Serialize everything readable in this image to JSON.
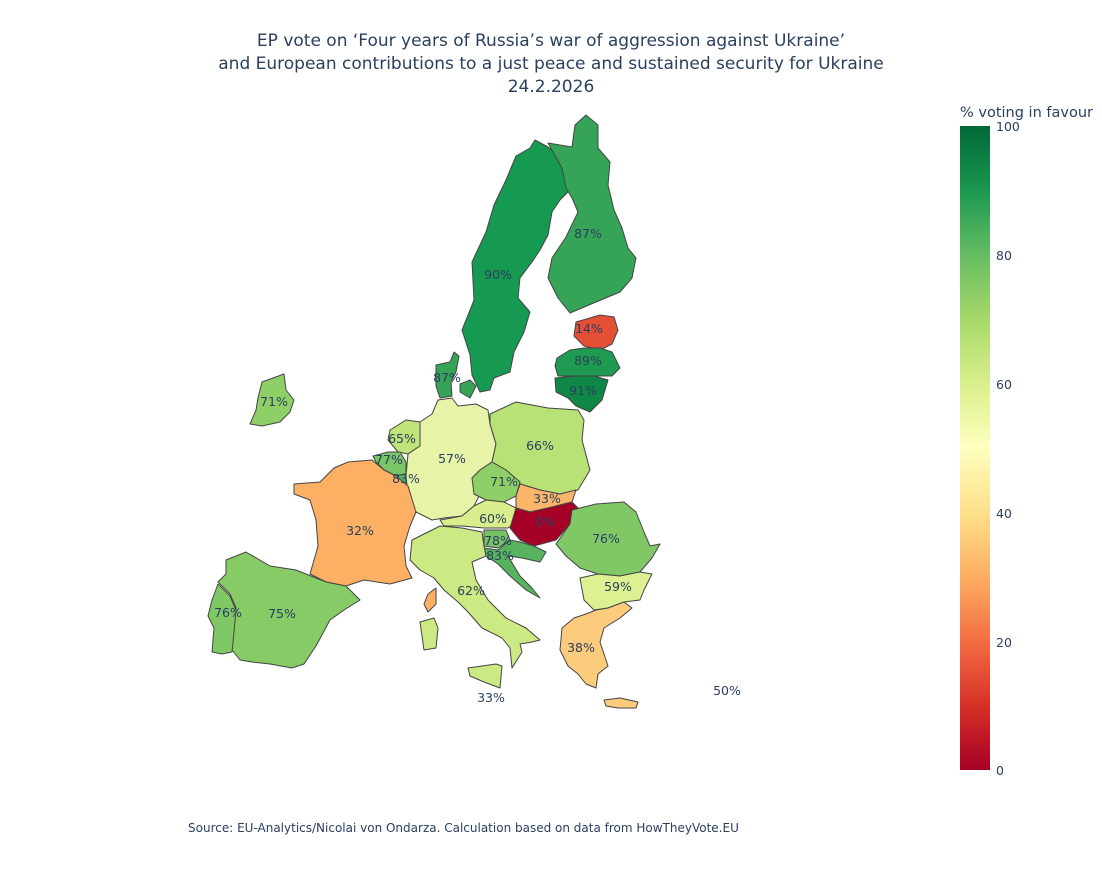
{
  "title": {
    "line1": "EP vote on ‘Four years of Russia’s war of aggression against Ukraine’",
    "line2": "and European contributions to a just peace and sustained security for Ukraine",
    "line3": "24.2.2026"
  },
  "colorbar": {
    "title": "% voting in favour",
    "ticks": [
      "100",
      "80",
      "60",
      "40",
      "20",
      "0"
    ],
    "colorscale": [
      "#a50026",
      "#d73027",
      "#f46d43",
      "#fdae61",
      "#fee08b",
      "#ffffbf",
      "#d9ef8b",
      "#a6d96a",
      "#66bd63",
      "#1a9850",
      "#006837"
    ]
  },
  "map": {
    "type": "choropleth",
    "metric": "% voting in favour",
    "countries": [
      {
        "id": "sweden",
        "label": "90%",
        "value": 90,
        "color": "#169950"
      },
      {
        "id": "finland",
        "label": "87%",
        "value": 87,
        "color": "#35a456"
      },
      {
        "id": "estonia",
        "label": "14%",
        "value": 14,
        "color": "#e44f36"
      },
      {
        "id": "latvia",
        "label": "89%",
        "value": 89,
        "color": "#1e9b50"
      },
      {
        "id": "lithuania",
        "label": "91%",
        "value": 91,
        "color": "#0f8746"
      },
      {
        "id": "denmark",
        "label": "87%",
        "value": 87,
        "color": "#35a456"
      },
      {
        "id": "ireland",
        "label": "71%",
        "value": 71,
        "color": "#8fcf67"
      },
      {
        "id": "netherlands",
        "label": "65%",
        "value": 65,
        "color": "#bfe47a"
      },
      {
        "id": "belgium",
        "label": "77%",
        "value": 77,
        "color": "#7ac565"
      },
      {
        "id": "luxembourg",
        "label": "83%",
        "value": 83,
        "color": "#58b35e"
      },
      {
        "id": "germany",
        "label": "57%",
        "value": 57,
        "color": "#e7f3a6"
      },
      {
        "id": "poland",
        "label": "66%",
        "value": 66,
        "color": "#b8e176"
      },
      {
        "id": "czechia",
        "label": "71%",
        "value": 71,
        "color": "#8fcf67"
      },
      {
        "id": "slovakia",
        "label": "33%",
        "value": 33,
        "color": "#fdb56a"
      },
      {
        "id": "austria",
        "label": "60%",
        "value": 60,
        "color": "#d9ef8b"
      },
      {
        "id": "hungary",
        "label": "0%",
        "value": 0,
        "color": "#a50026"
      },
      {
        "id": "romania",
        "label": "76%",
        "value": 76,
        "color": "#80c865"
      },
      {
        "id": "bulgaria",
        "label": "59%",
        "value": 59,
        "color": "#ddf193"
      },
      {
        "id": "greece",
        "label": "38%",
        "value": 38,
        "color": "#fdcb7c"
      },
      {
        "id": "cyprus",
        "label": "50%",
        "value": 50,
        "color": "#ffffbf"
      },
      {
        "id": "slovenia",
        "label": "78%",
        "value": 78,
        "color": "#76c365"
      },
      {
        "id": "croatia",
        "label": "83%",
        "value": 83,
        "color": "#58b35e"
      },
      {
        "id": "italy",
        "label": "62%",
        "value": 62,
        "color": "#cde983"
      },
      {
        "id": "malta",
        "label": "33%",
        "value": 33,
        "color": "#fdb56a"
      },
      {
        "id": "france",
        "label": "32%",
        "value": 32,
        "color": "#fdb063"
      },
      {
        "id": "spain",
        "label": "75%",
        "value": 75,
        "color": "#86cb66"
      },
      {
        "id": "portugal",
        "label": "76%",
        "value": 76,
        "color": "#80c865"
      }
    ]
  },
  "source": "Source: EU-Analytics/Nicolai von Ondarza. Calculation based on data from HowTheyVote.EU"
}
